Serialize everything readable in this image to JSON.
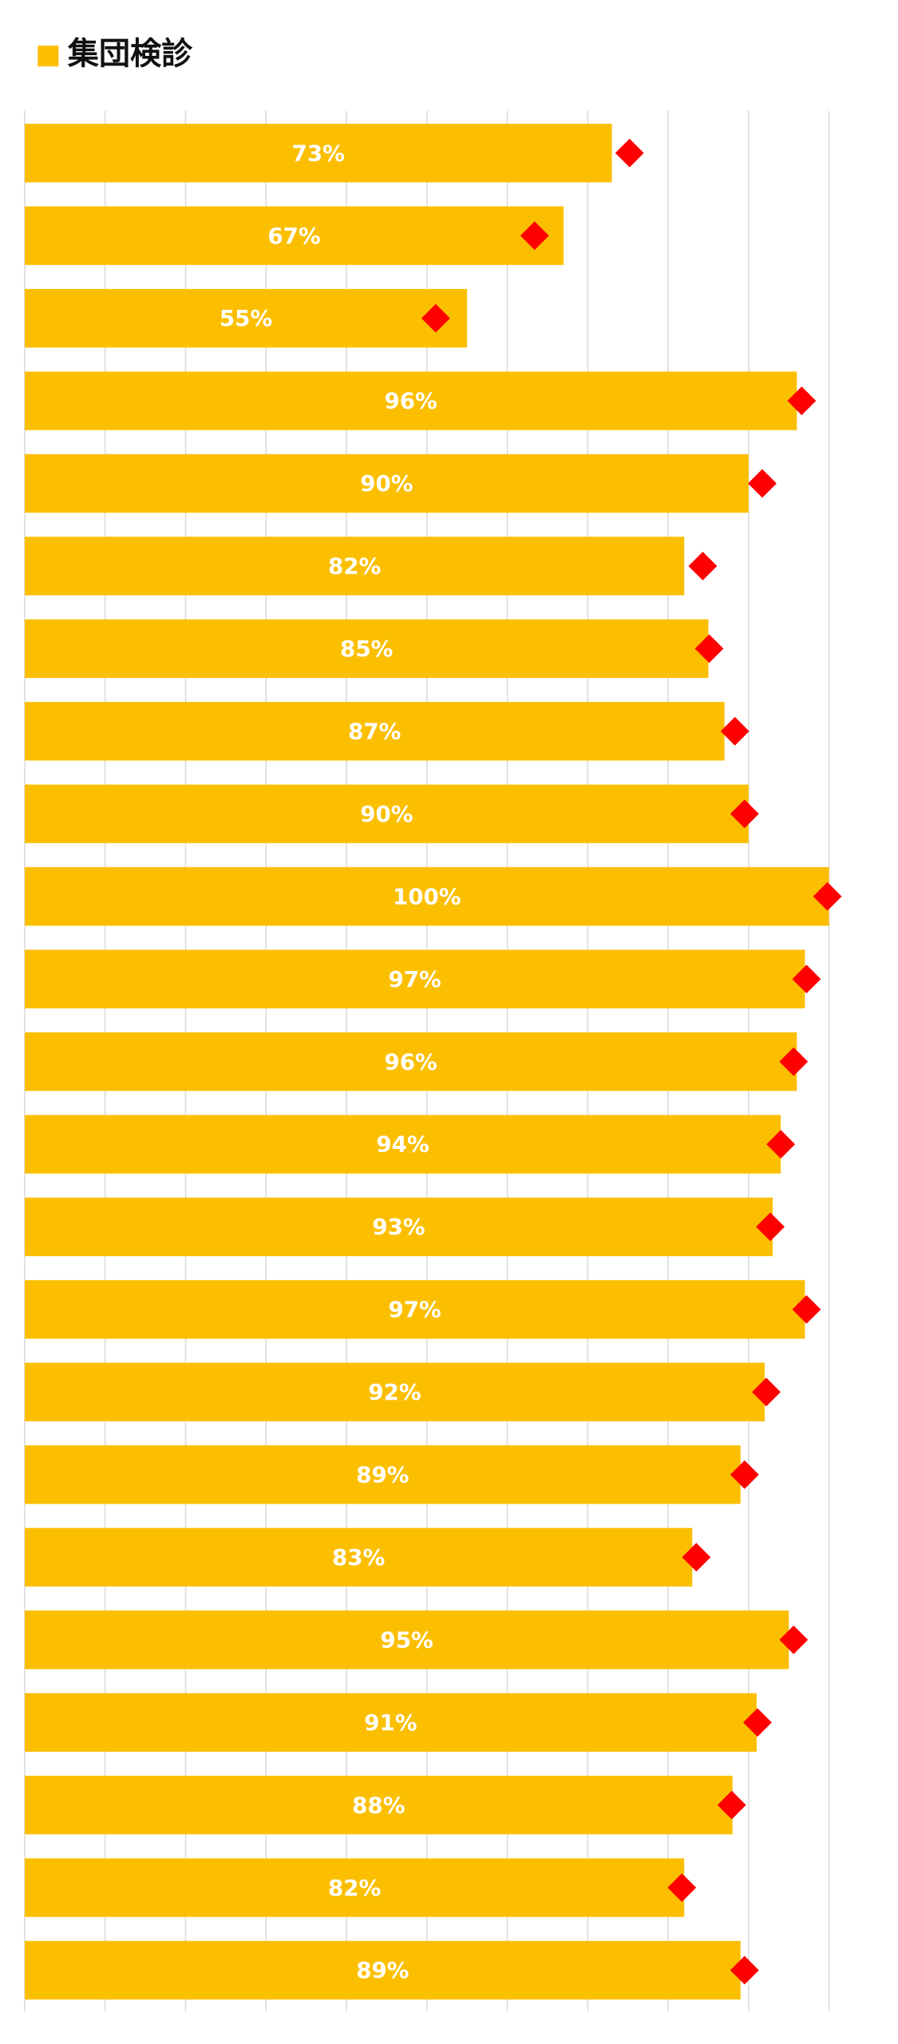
{
  "chart_data": {
    "type": "hbar",
    "categories": [
      null,
      null,
      null,
      null,
      null,
      null,
      null,
      null,
      null,
      null,
      null,
      null,
      null,
      null,
      null,
      null,
      null,
      null,
      null,
      null,
      null,
      null,
      null
    ],
    "series": [
      {
        "name": "集団検診",
        "color": "#fcbf00",
        "values": [
          73,
          67,
          55,
          96,
          90,
          82,
          85,
          87,
          90,
          100,
          97,
          96,
          94,
          93,
          97,
          92,
          89,
          83,
          95,
          91,
          88,
          82,
          89
        ],
        "value_labels": [
          "73%",
          "67%",
          "55%",
          "96%",
          "90%",
          "82%",
          "85%",
          "87%",
          "90%",
          "100%",
          "97%",
          "96%",
          "94%",
          "93%",
          "97%",
          "92%",
          "89%",
          "83%",
          "95%",
          "91%",
          "88%",
          "82%",
          "89%"
        ]
      },
      {
        "color": "#ff0000",
        "marker": "diamond",
        "values": [
          75.2,
          63.4,
          51.1,
          96.6,
          91.7,
          84.3,
          85.1,
          88.3,
          89.5,
          99.8,
          97.2,
          95.6,
          94.0,
          92.7,
          97.2,
          92.2,
          89.5,
          83.5,
          95.6,
          91.1,
          87.9,
          81.7,
          89.5
        ]
      }
    ],
    "xlim": [
      0,
      100
    ],
    "xticks": [
      0,
      10,
      20,
      30,
      40,
      50,
      60,
      70,
      80,
      90,
      100
    ],
    "grid": true
  }
}
